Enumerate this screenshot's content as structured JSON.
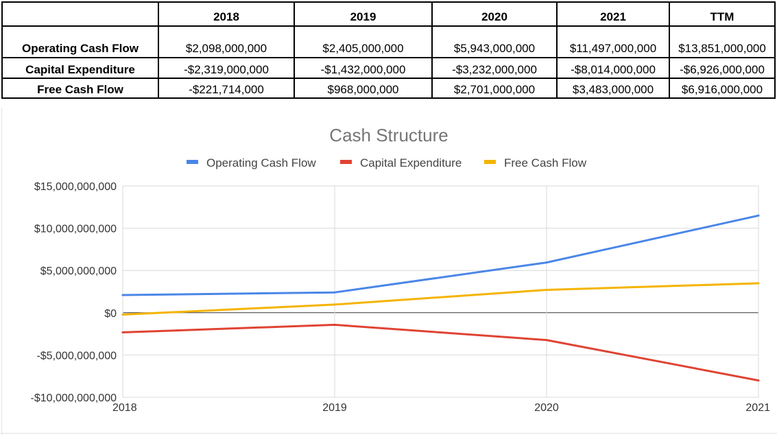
{
  "table": {
    "headers": [
      "",
      "2018",
      "2019",
      "2020",
      "2021",
      "TTM"
    ],
    "rows": [
      {
        "label": "Operating Cash Flow",
        "values": [
          "$2,098,000,000",
          "$2,405,000,000",
          "$5,943,000,000",
          "$11,497,000,000",
          "$13,851,000,000"
        ]
      },
      {
        "label": "Capital Expenditure",
        "values": [
          "-$2,319,000,000",
          "-$1,432,000,000",
          "-$3,232,000,000",
          "-$8,014,000,000",
          "-$6,926,000,000"
        ]
      },
      {
        "label": "Free Cash Flow",
        "values": [
          "-$221,714,000",
          "$968,000,000",
          "$2,701,000,000",
          "$3,483,000,000",
          "$6,916,000,000"
        ]
      }
    ]
  },
  "chart_data": {
    "type": "line",
    "title": "Cash Structure",
    "xlabel": "",
    "ylabel": "",
    "x": [
      "2018",
      "2019",
      "2020",
      "2021"
    ],
    "series": [
      {
        "name": "Operating Cash Flow",
        "color": "#4a86e8",
        "values": [
          2098000000,
          2405000000,
          5943000000,
          11497000000
        ]
      },
      {
        "name": "Capital Expenditure",
        "color": "#e04333",
        "values": [
          -2319000000,
          -1432000000,
          -3232000000,
          -8014000000
        ]
      },
      {
        "name": "Free Cash Flow",
        "color": "#f4b400",
        "values": [
          -221714000,
          968000000,
          2701000000,
          3483000000
        ]
      }
    ],
    "ylim": [
      -10000000000,
      15000000000
    ],
    "yticks": [
      15000000000,
      10000000000,
      5000000000,
      0,
      -5000000000,
      -10000000000
    ],
    "ytick_labels": [
      "$15,000,000,000",
      "$10,000,000,000",
      "$5,000,000,000",
      "$0",
      "-$5,000,000,000",
      "-$10,000,000,000"
    ],
    "grid": true,
    "legend": "top"
  }
}
